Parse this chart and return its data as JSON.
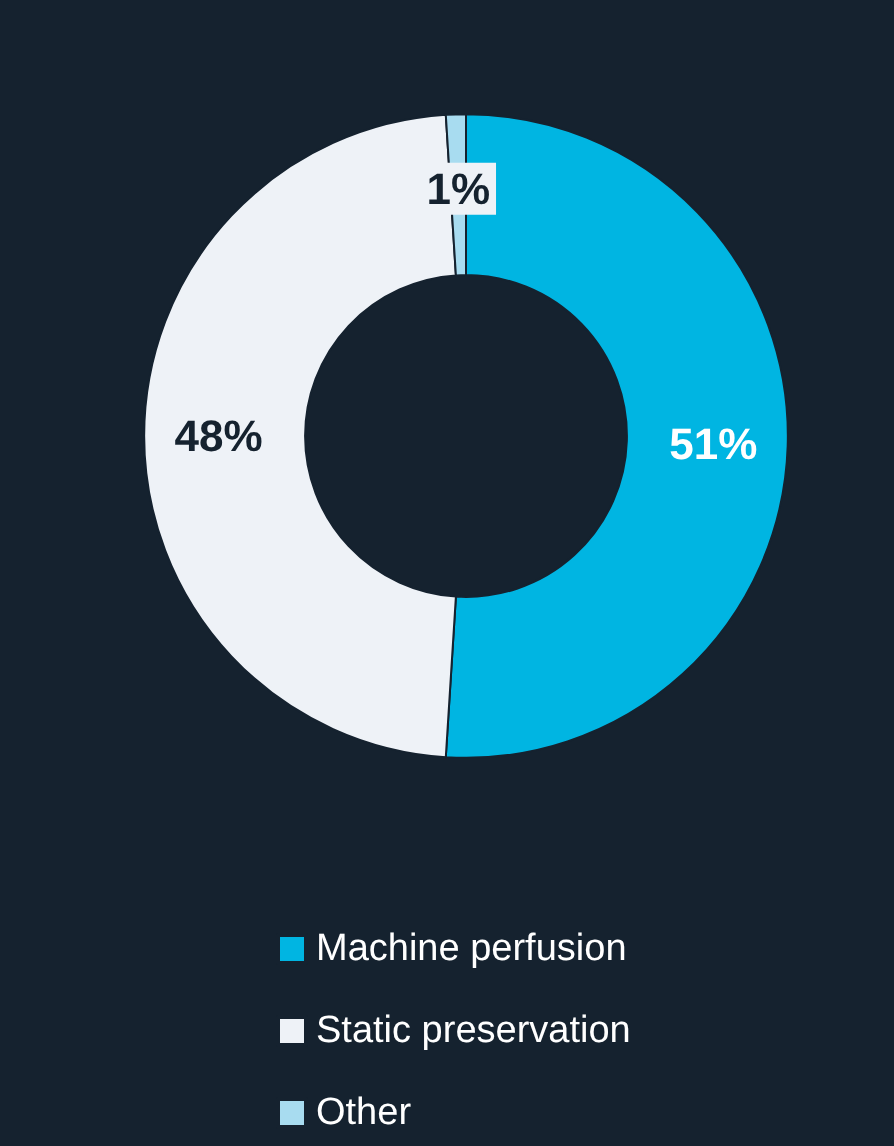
{
  "chart_data": {
    "type": "donut",
    "categories": [
      "Machine perfusion",
      "Static preservation",
      "Other"
    ],
    "values": [
      51,
      48,
      1
    ],
    "colors": [
      "#00b5e2",
      "#eef2f7",
      "#a8dcf0"
    ],
    "value_labels": [
      "51%",
      "48%",
      "1%"
    ],
    "legend": "bottom"
  }
}
